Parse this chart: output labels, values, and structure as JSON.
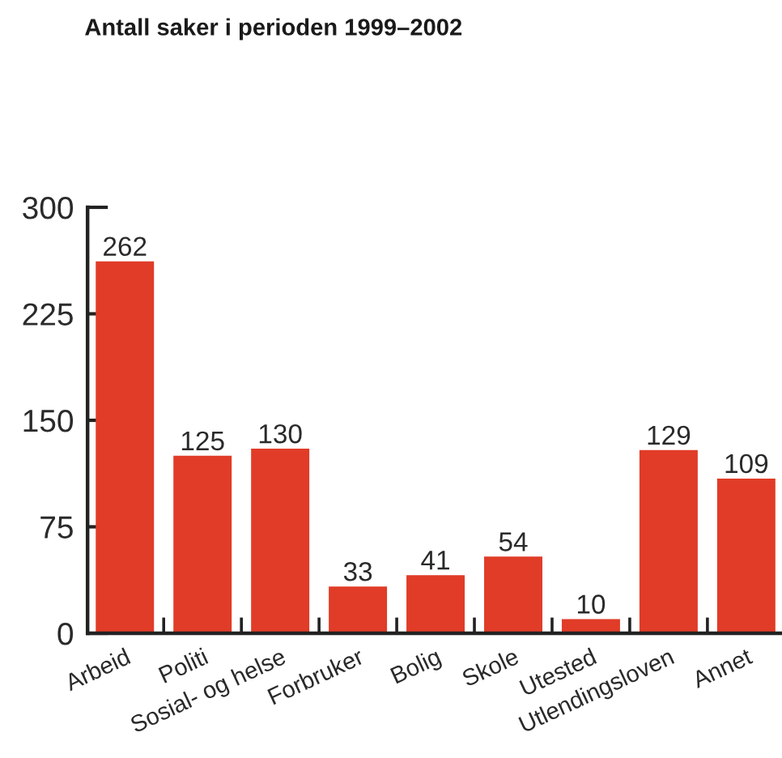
{
  "chart_data": {
    "type": "bar",
    "title": "Antall saker i perioden 1999–2002",
    "categories": [
      "Arbeid",
      "Politi",
      "Sosial- og helse",
      "Forbruker",
      "Bolig",
      "Skole",
      "Utested",
      "Utlendingsloven",
      "Annet"
    ],
    "values": [
      262,
      125,
      130,
      33,
      41,
      54,
      10,
      129,
      109
    ],
    "color": "#e03c28",
    "ylim": [
      0,
      300
    ],
    "yticks": [
      0,
      75,
      150,
      225,
      300
    ],
    "data_labels": true
  }
}
